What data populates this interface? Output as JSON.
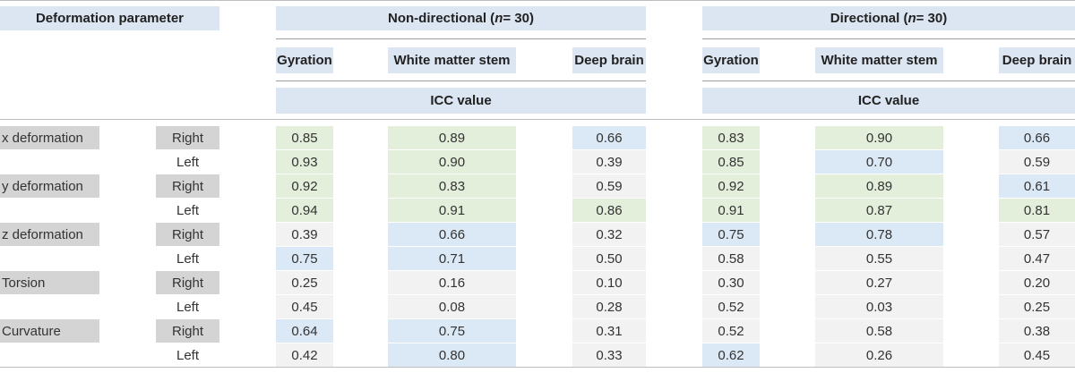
{
  "header": {
    "param_label": "Deformation parameter",
    "groups": [
      {
        "title_pre": "Non-directional (",
        "n_symbol": "n",
        "title_post": " = 30)"
      },
      {
        "title_pre": "Directional (",
        "n_symbol": "n",
        "title_post": " = 30)"
      }
    ],
    "columns": [
      "Gyration",
      "White matter stem",
      "Deep brain"
    ],
    "icc_label": "ICC value"
  },
  "rows": [
    {
      "param": "x deformation",
      "side": "Right",
      "values": [
        "0.85",
        "0.89",
        "0.66",
        "0.83",
        "0.90",
        "0.66"
      ],
      "shade": [
        "g",
        "g",
        "b",
        "g",
        "g",
        "b"
      ]
    },
    {
      "param": "",
      "side": "Left",
      "values": [
        "0.93",
        "0.90",
        "0.39",
        "0.85",
        "0.70",
        "0.59"
      ],
      "shade": [
        "g",
        "g",
        "n",
        "g",
        "b",
        "n"
      ]
    },
    {
      "param": "y deformation",
      "side": "Right",
      "values": [
        "0.92",
        "0.83",
        "0.59",
        "0.92",
        "0.89",
        "0.61"
      ],
      "shade": [
        "g",
        "g",
        "n",
        "g",
        "g",
        "b"
      ]
    },
    {
      "param": "",
      "side": "Left",
      "values": [
        "0.94",
        "0.91",
        "0.86",
        "0.91",
        "0.87",
        "0.81"
      ],
      "shade": [
        "g",
        "g",
        "g",
        "g",
        "g",
        "g"
      ]
    },
    {
      "param": "z deformation",
      "side": "Right",
      "values": [
        "0.39",
        "0.66",
        "0.32",
        "0.75",
        "0.78",
        "0.57"
      ],
      "shade": [
        "n",
        "b",
        "n",
        "b",
        "b",
        "n"
      ]
    },
    {
      "param": "",
      "side": "Left",
      "values": [
        "0.75",
        "0.71",
        "0.50",
        "0.58",
        "0.55",
        "0.47"
      ],
      "shade": [
        "b",
        "b",
        "n",
        "n",
        "n",
        "n"
      ]
    },
    {
      "param": "Torsion",
      "side": "Right",
      "values": [
        "0.25",
        "0.16",
        "0.10",
        "0.30",
        "0.27",
        "0.20"
      ],
      "shade": [
        "n",
        "n",
        "n",
        "n",
        "n",
        "n"
      ]
    },
    {
      "param": "",
      "side": "Left",
      "values": [
        "0.45",
        "0.08",
        "0.28",
        "0.52",
        "0.03",
        "0.25"
      ],
      "shade": [
        "n",
        "n",
        "n",
        "n",
        "n",
        "n"
      ]
    },
    {
      "param": "Curvature",
      "side": "Right",
      "values": [
        "0.64",
        "0.75",
        "0.31",
        "0.52",
        "0.58",
        "0.38"
      ],
      "shade": [
        "b",
        "b",
        "n",
        "n",
        "n",
        "n"
      ]
    },
    {
      "param": "",
      "side": "Left",
      "values": [
        "0.42",
        "0.80",
        "0.33",
        "0.62",
        "0.26",
        "0.45"
      ],
      "shade": [
        "n",
        "b",
        "n",
        "b",
        "n",
        "n"
      ]
    }
  ],
  "colors": {
    "header_bg": "#dce5f2",
    "label_bg": "#d4d4d4",
    "green": "#e3eedb",
    "blue": "#dbe8f5",
    "neutral": "#f2f2f2"
  }
}
